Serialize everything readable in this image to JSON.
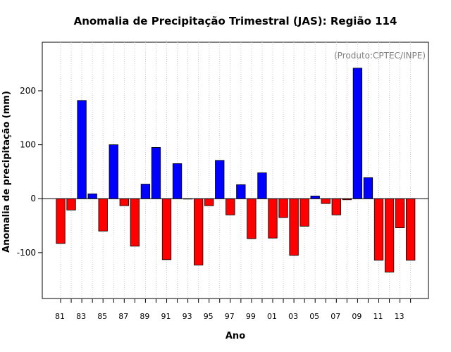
{
  "chart_data": {
    "type": "bar",
    "title": "Anomalia de Precipitação Trimestral (JAS): Região 114",
    "xlabel": "Ano",
    "ylabel": "Anomalia de precipitação (mm)",
    "credit": "(Produto:CPTEC/INPE)",
    "ylim": [
      -185,
      290
    ],
    "yticks": [
      -100,
      0,
      100,
      200
    ],
    "ytick_labels": [
      "-100",
      "0",
      "100",
      "200"
    ],
    "grid": "vertical dotted",
    "categories": [
      "1981",
      "1982",
      "1983",
      "1984",
      "1985",
      "1986",
      "1987",
      "1988",
      "1989",
      "1990",
      "1991",
      "1992",
      "1993",
      "1994",
      "1995",
      "1996",
      "1997",
      "1998",
      "1999",
      "2000",
      "2001",
      "2002",
      "2003",
      "2004",
      "2005",
      "2006",
      "2007",
      "2008",
      "2009",
      "2010",
      "2011",
      "2012",
      "2013",
      "2014"
    ],
    "tick_labels": [
      "81",
      "",
      "83",
      "",
      "85",
      "",
      "87",
      "",
      "89",
      "",
      "91",
      "",
      "93",
      "",
      "95",
      "",
      "97",
      "",
      "99",
      "",
      "01",
      "",
      "03",
      "",
      "05",
      "",
      "07",
      "",
      "09",
      "",
      "11",
      "",
      "13",
      ""
    ],
    "values": [
      -83,
      -21,
      182,
      9,
      -60,
      100,
      -13,
      -88,
      27,
      95,
      -113,
      65,
      0,
      -123,
      -13,
      71,
      -30,
      26,
      -74,
      48,
      -73,
      -35,
      -105,
      -51,
      5,
      -9,
      -30,
      -2,
      242,
      39,
      -114,
      -136,
      -54,
      -114
    ],
    "colors": {
      "positive": "#0000ff",
      "negative": "#ff0000",
      "grid": "#c8c8c8",
      "zero_line": "#000000"
    }
  }
}
